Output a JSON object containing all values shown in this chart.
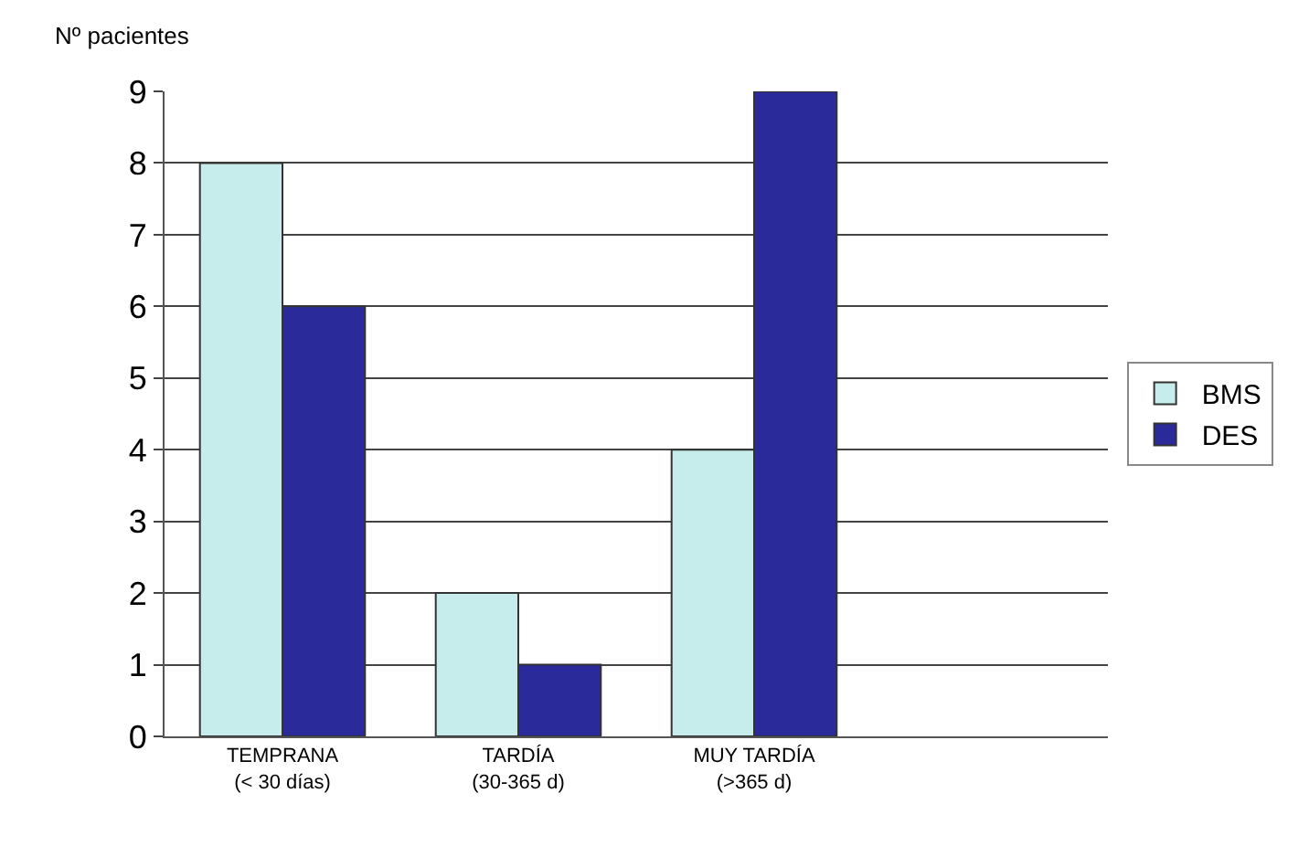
{
  "chart_data": {
    "type": "bar",
    "ylabel": "Nº pacientes",
    "categories": [
      "TEMPRANA\n(< 30 días)",
      "TARDÍA\n(30-365 d)",
      "MUY TARDÍA\n(>365 d)",
      null
    ],
    "series": [
      {
        "name": "BMS",
        "color": "#c6ecec",
        "values": [
          8,
          2,
          4,
          null
        ]
      },
      {
        "name": "DES",
        "color": "#2a2a9a",
        "values": [
          6,
          1,
          9,
          null
        ]
      }
    ],
    "ylim": [
      0,
      9
    ],
    "yticks": [
      0,
      1,
      2,
      3,
      4,
      5,
      6,
      7,
      8,
      9
    ],
    "grid": "y",
    "legend": "right"
  }
}
